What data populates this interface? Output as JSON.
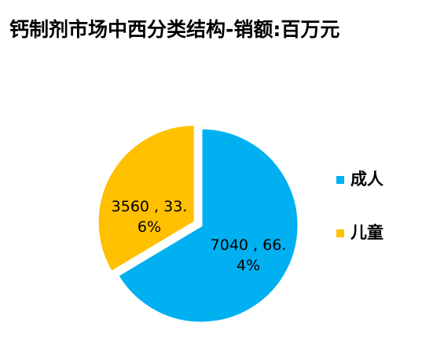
{
  "chart_data": {
    "type": "pie",
    "title": "钙制剂市场中西分类结构-销额:百万元",
    "categories": [
      "成人",
      "儿童"
    ],
    "values": [
      7040,
      3560
    ],
    "value_labels": [
      "7040 , 66.4%",
      "3560 , 33.6%"
    ],
    "colors": [
      "#00b0f0",
      "#ffc000"
    ],
    "legend": "right"
  }
}
